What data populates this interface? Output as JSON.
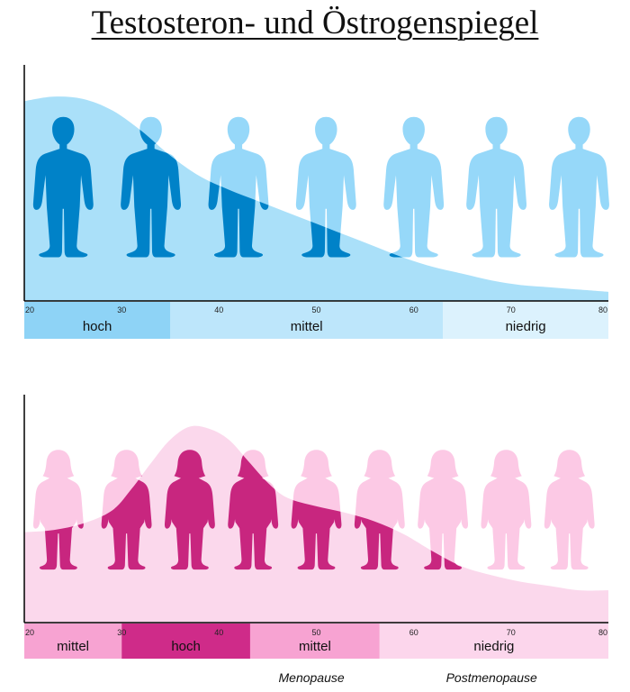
{
  "title": "Testosteron- und Östrogenspiegel",
  "chart_data": [
    {
      "type": "area",
      "title": "",
      "xlabel": "",
      "ylabel": "",
      "xlim": [
        20,
        80
      ],
      "x_ticks": [
        20,
        30,
        40,
        50,
        60,
        70,
        80
      ],
      "x_tick_labels": [
        "20",
        "30",
        "40",
        "50",
        "60",
        "70",
        "80"
      ],
      "ylim": [
        0,
        100
      ],
      "grid": false,
      "series": [
        {
          "color": "#a3ddf9",
          "x": [
            20,
            23,
            26,
            29,
            32,
            35,
            38,
            41,
            44,
            47,
            50,
            53,
            56,
            59,
            62,
            65,
            68,
            71,
            74,
            77,
            80
          ],
          "y": [
            88,
            90,
            89,
            84,
            75,
            64,
            55,
            49,
            44,
            39,
            34,
            29,
            24,
            19,
            15,
            12,
            9,
            7,
            6,
            5,
            4
          ]
        }
      ],
      "bands": [
        {
          "label": "hoch",
          "from": 20,
          "to": 35,
          "color": "#8ed3f6"
        },
        {
          "label": "mittel",
          "from": 35,
          "to": 63,
          "color": "#bde6fb"
        },
        {
          "label": "niedrig",
          "from": 63,
          "to": 80,
          "color": "#dcf2fd"
        }
      ],
      "figure_icon": "male-silhouette-icon",
      "figure_x": [
        24,
        33,
        42,
        51,
        60,
        68.5,
        77
      ],
      "figure_color": "#96d8f9",
      "figure_highlight_color": "#0082c8"
    },
    {
      "type": "area",
      "title": "",
      "xlabel": "",
      "ylabel": "",
      "xlim": [
        20,
        80
      ],
      "x_ticks": [
        20,
        30,
        40,
        50,
        60,
        70,
        80
      ],
      "x_tick_labels": [
        "20",
        "30",
        "40",
        "50",
        "60",
        "70",
        "80"
      ],
      "ylim": [
        0,
        100
      ],
      "grid": false,
      "series": [
        {
          "color": "#fbd4ea",
          "x": [
            20,
            23,
            26,
            29,
            31,
            33,
            35,
            37,
            39,
            41,
            43,
            45,
            47,
            50,
            53,
            56,
            59,
            62,
            65,
            68,
            71,
            74,
            77,
            80
          ],
          "y": [
            42,
            43,
            46,
            52,
            62,
            74,
            85,
            91,
            90,
            85,
            75,
            65,
            58,
            54,
            51,
            47,
            41,
            33,
            26,
            22,
            19,
            17,
            15,
            15
          ]
        }
      ],
      "bands": [
        {
          "label": "mittel",
          "from": 20,
          "to": 30,
          "color": "#f7a3d2"
        },
        {
          "label": "hoch",
          "from": 30,
          "to": 43.2,
          "color": "#cf2b89"
        },
        {
          "label": "mittel",
          "from": 43.2,
          "to": 56.5,
          "color": "#f7a3d2"
        },
        {
          "label": "niedrig",
          "from": 56.5,
          "to": 80,
          "color": "#fcd6ec"
        }
      ],
      "figure_icon": "female-silhouette-icon",
      "figure_x": [
        23.5,
        30.5,
        37,
        43.5,
        50,
        56.5,
        63,
        69.5,
        76
      ],
      "figure_color": "#fcc9e5",
      "figure_highlight_color": "#c8267f",
      "phases": [
        {
          "label": "Menopause",
          "x": 49.5
        },
        {
          "label": "Postmenopause",
          "x": 68
        }
      ]
    }
  ]
}
